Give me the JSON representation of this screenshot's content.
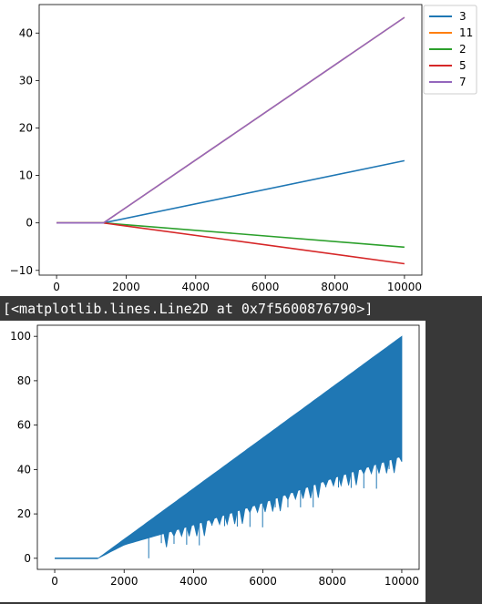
{
  "output": {
    "text": "[<matplotlib.lines.Line2D at 0x7f5600876790>]"
  },
  "colors": {
    "tab_blue": "#1f77b4",
    "tab_orange": "#ff7f0e",
    "tab_green": "#2ca02c",
    "tab_red": "#d62728",
    "tab_purple": "#9467bd",
    "output_background": "#383838"
  },
  "chart_data": [
    {
      "type": "line",
      "title": "",
      "xlabel": "",
      "ylabel": "",
      "xlim": [
        -500,
        10500
      ],
      "ylim": [
        -11,
        46
      ],
      "xticks": [
        0,
        2000,
        4000,
        6000,
        8000,
        10000
      ],
      "xtick_labels": [
        "0",
        "2000",
        "4000",
        "6000",
        "8000",
        "10000"
      ],
      "yticks": [
        -10,
        0,
        10,
        20,
        30,
        40
      ],
      "ytick_labels": [
        "−10",
        "0",
        "10",
        "20",
        "30",
        "40"
      ],
      "grid": false,
      "legend_position": "outside-upper-right",
      "series": [
        {
          "name": "3",
          "color": "#1f77b4",
          "x": [
            0,
            1350,
            10000
          ],
          "y": [
            0,
            0,
            13.1
          ]
        },
        {
          "name": "11",
          "color": "#ff7f0e",
          "x": [
            0,
            1350,
            10000
          ],
          "y": [
            0,
            0,
            43.3
          ]
        },
        {
          "name": "2",
          "color": "#2ca02c",
          "x": [
            0,
            1350,
            10000
          ],
          "y": [
            0,
            0,
            -5.1
          ]
        },
        {
          "name": "5",
          "color": "#d62728",
          "x": [
            0,
            1350,
            10000
          ],
          "y": [
            0,
            0,
            -8.6
          ]
        },
        {
          "name": "7",
          "color": "#9467bd",
          "x": [
            0,
            1350,
            10000
          ],
          "y": [
            0,
            0,
            43.3
          ]
        }
      ]
    },
    {
      "type": "line",
      "title": "",
      "xlabel": "",
      "ylabel": "",
      "xlim": [
        -500,
        10500
      ],
      "ylim": [
        -5,
        105
      ],
      "xticks": [
        0,
        2000,
        4000,
        6000,
        8000,
        10000
      ],
      "xtick_labels": [
        "0",
        "2000",
        "4000",
        "6000",
        "8000",
        "10000"
      ],
      "yticks": [
        0,
        20,
        40,
        60,
        80,
        100
      ],
      "ytick_labels": [
        "0",
        "20",
        "40",
        "60",
        "80",
        "100"
      ],
      "grid": false,
      "series": [
        {
          "color": "#1f77b4",
          "upper_envelope": {
            "x": [
              0,
              1250,
              10000
            ],
            "y": [
              0,
              0,
              100
            ]
          },
          "lower_envelope": {
            "x": [
              0,
              1250,
              2000,
              4000,
              6000,
              8000,
              10000
            ],
            "y": [
              0,
              0,
              6,
              15,
              25,
              36,
              46
            ]
          }
        }
      ]
    }
  ]
}
